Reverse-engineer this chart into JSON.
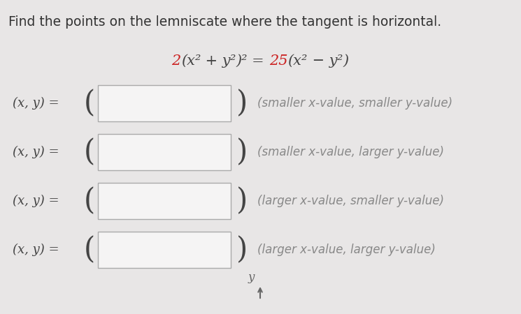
{
  "title_line1": "Find the points on the lemniscate where the tangent is horizontal.",
  "rows": [
    {
      "label": "(x, y) =",
      "hint": "(smaller x-value, smaller y-value)"
    },
    {
      "label": "(x, y) =",
      "hint": "(smaller x-value, larger y-value)"
    },
    {
      "label": "(x, y) =",
      "hint": "(larger x-value, smaller y-value)"
    },
    {
      "label": "(x, y) =",
      "hint": "(larger x-value, larger y-value)"
    }
  ],
  "background_color": "#e8e6e6",
  "box_color": "#f5f4f4",
  "box_border_color": "#aaaaaa",
  "label_color": "#444444",
  "title_color": "#333333",
  "hint_color": "#888888",
  "red_color": "#cc2222",
  "eq_gray": "#444444",
  "y_arrow_label": "y",
  "title_fontsize": 13.5,
  "eq_fontsize": 15,
  "label_fontsize": 13,
  "hint_fontsize": 12,
  "paren_fontsize": 30
}
